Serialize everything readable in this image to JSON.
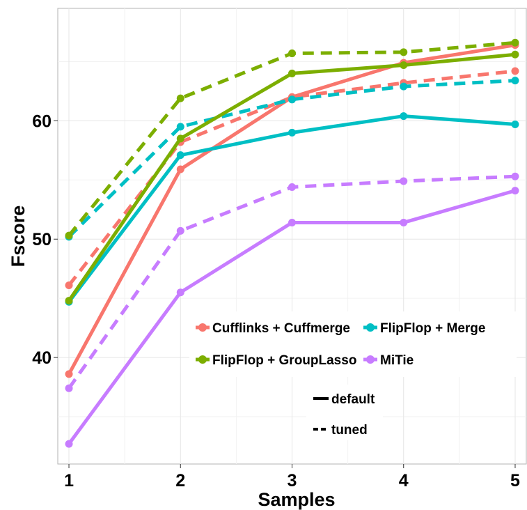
{
  "chart_data": {
    "type": "line",
    "xlabel": "Samples",
    "ylabel": "Fscore",
    "x": [
      1,
      2,
      3,
      4,
      5
    ],
    "xlim": [
      0.9,
      5.1
    ],
    "ylim": [
      31,
      69.5
    ],
    "xticks": [
      "1",
      "2",
      "3",
      "4",
      "5"
    ],
    "yticks": [
      40,
      50,
      60
    ],
    "ytick_labels": [
      "40",
      "50",
      "60"
    ],
    "grid": true,
    "series": [
      {
        "name": "Cufflinks + Cuffmerge",
        "color": "#F8766D",
        "style": "default",
        "values": [
          38.6,
          55.9,
          62.0,
          64.9,
          66.4
        ]
      },
      {
        "name": "Cufflinks + Cuffmerge",
        "color": "#F8766D",
        "style": "tuned",
        "values": [
          46.1,
          58.2,
          62.0,
          63.2,
          64.2
        ]
      },
      {
        "name": "FlipFlop + GroupLasso",
        "color": "#7CAE00",
        "style": "default",
        "values": [
          44.8,
          58.5,
          64.0,
          64.7,
          65.6
        ]
      },
      {
        "name": "FlipFlop + GroupLasso",
        "color": "#7CAE00",
        "style": "tuned",
        "values": [
          50.3,
          61.9,
          65.7,
          65.8,
          66.6
        ]
      },
      {
        "name": "FlipFlop + Merge",
        "color": "#00BFC4",
        "style": "default",
        "values": [
          44.7,
          57.1,
          59.0,
          60.4,
          59.7
        ]
      },
      {
        "name": "FlipFlop + Merge",
        "color": "#00BFC4",
        "style": "tuned",
        "values": [
          50.2,
          59.5,
          61.8,
          62.9,
          63.4
        ]
      },
      {
        "name": "MiTie",
        "color": "#C77CFF",
        "style": "default",
        "values": [
          32.7,
          45.5,
          51.4,
          51.4,
          54.1
        ]
      },
      {
        "name": "MiTie",
        "color": "#C77CFF",
        "style": "tuned",
        "values": [
          37.4,
          50.7,
          54.4,
          54.9,
          55.3
        ]
      }
    ],
    "legend_methods": [
      {
        "label": "Cufflinks + Cuffmerge",
        "color": "#F8766D"
      },
      {
        "label": "FlipFlop + Merge",
        "color": "#00BFC4"
      },
      {
        "label": "FlipFlop + GroupLasso",
        "color": "#7CAE00"
      },
      {
        "label": "MiTie",
        "color": "#C77CFF"
      }
    ],
    "legend_styles": [
      {
        "label": "default",
        "style": "solid"
      },
      {
        "label": "tuned",
        "style": "dashed"
      }
    ]
  }
}
